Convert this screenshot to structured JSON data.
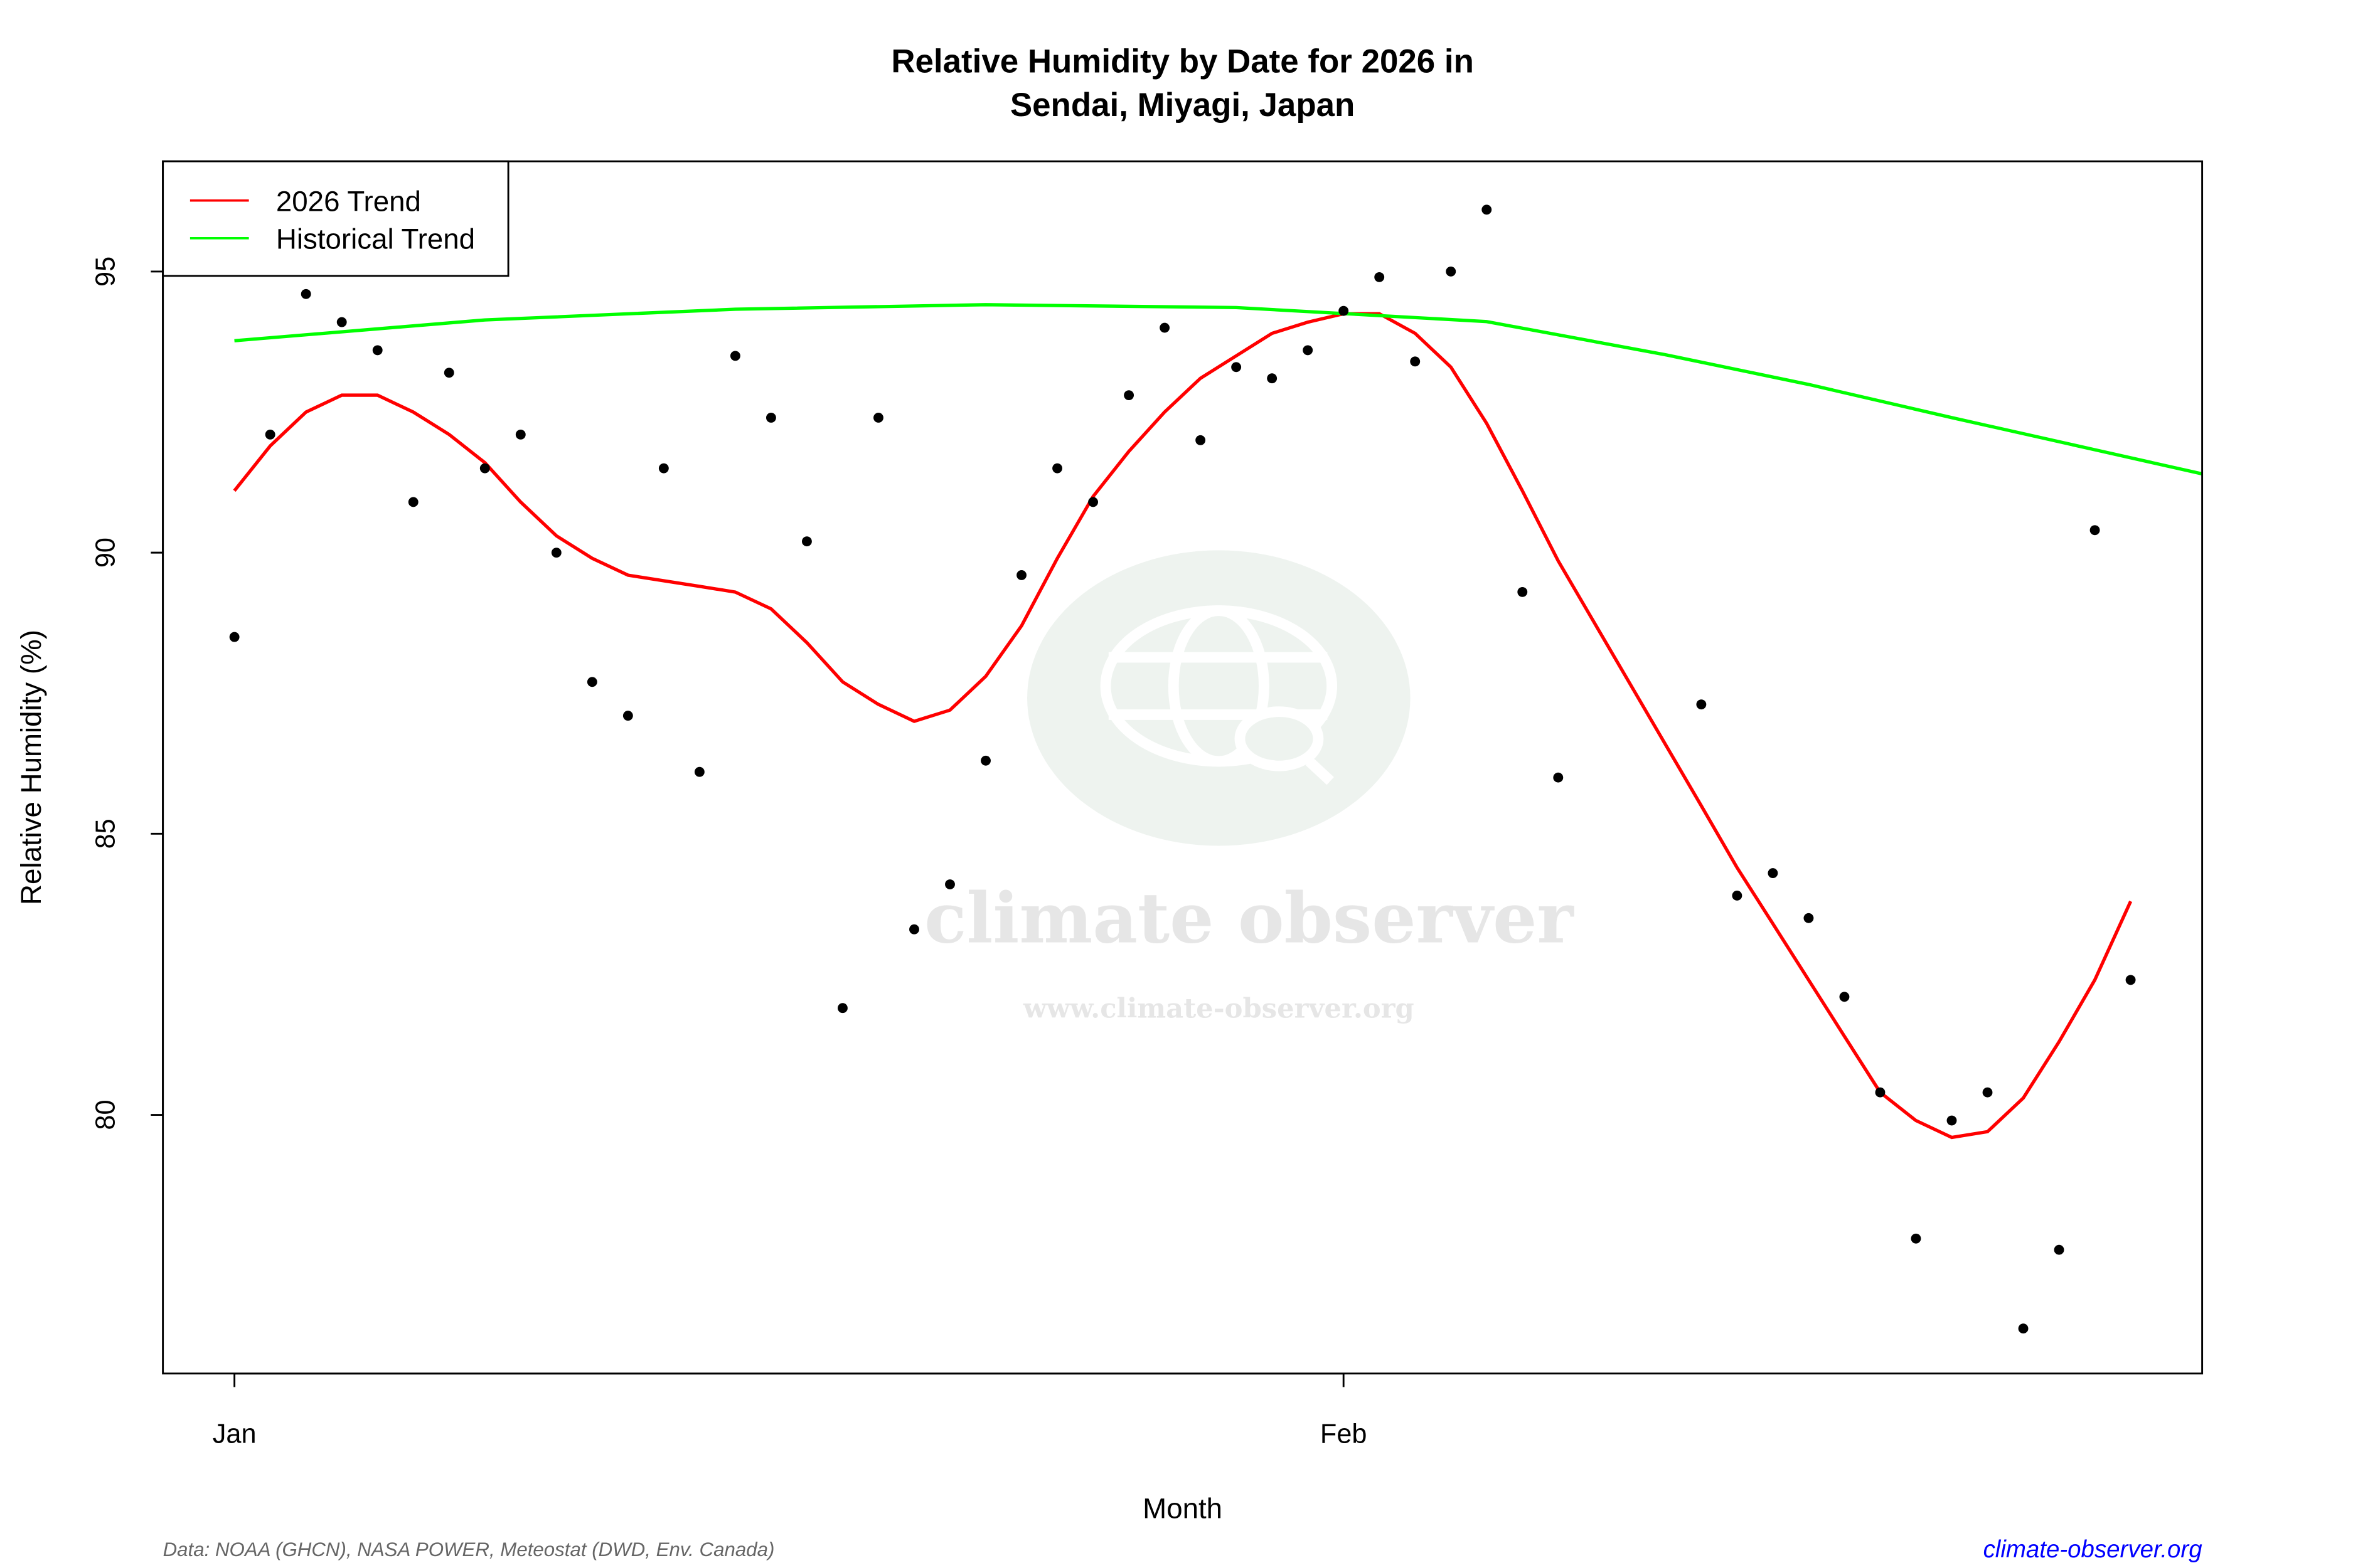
{
  "chart_data": {
    "type": "scatter",
    "title": "Relative Humidity by Date for 2026 in",
    "subtitle": "Sendai, Miyagi, Japan",
    "xlabel": "Month",
    "ylabel": "Relative Humidity (%)",
    "ylim": [
      75.4,
      96.96
    ],
    "xlim": [
      "2025-12-30",
      "2026-02-25"
    ],
    "y_ticks": [
      80,
      85,
      90,
      95
    ],
    "x_ticks": [
      {
        "date": "2026-01-01",
        "label": "Jan"
      },
      {
        "date": "2026-02-01",
        "label": "Feb"
      }
    ],
    "grid": false,
    "legend_position": "top-left",
    "legend": [
      {
        "label": "2026 Trend",
        "color": "#ff0000"
      },
      {
        "label": "Historical Trend",
        "color": "#00ff00"
      }
    ],
    "points": {
      "color": "#000000",
      "x": [
        "2026-01-01",
        "2026-01-02",
        "2026-01-03",
        "2026-01-04",
        "2026-01-05",
        "2026-01-06",
        "2026-01-07",
        "2026-01-08",
        "2026-01-09",
        "2026-01-10",
        "2026-01-11",
        "2026-01-12",
        "2026-01-13",
        "2026-01-14",
        "2026-01-15",
        "2026-01-16",
        "2026-01-17",
        "2026-01-18",
        "2026-01-19",
        "2026-01-20",
        "2026-01-21",
        "2026-01-22",
        "2026-01-23",
        "2026-01-24",
        "2026-01-25",
        "2026-01-26",
        "2026-01-27",
        "2026-01-28",
        "2026-01-29",
        "2026-01-30",
        "2026-01-31",
        "2026-02-01",
        "2026-02-02",
        "2026-02-03",
        "2026-02-04",
        "2026-02-05",
        "2026-02-06",
        "2026-02-07",
        "2026-02-11",
        "2026-02-12",
        "2026-02-13",
        "2026-02-14",
        "2026-02-15",
        "2026-02-16",
        "2026-02-17",
        "2026-02-18",
        "2026-02-19",
        "2026-02-20",
        "2026-02-21",
        "2026-02-22",
        "2026-02-23"
      ],
      "y": [
        88.5,
        92.1,
        94.6,
        94.1,
        93.6,
        90.9,
        93.2,
        91.5,
        92.1,
        90.0,
        87.7,
        87.1,
        91.5,
        86.1,
        93.5,
        92.4,
        90.2,
        81.9,
        92.4,
        83.3,
        84.1,
        86.3,
        89.6,
        91.5,
        90.9,
        92.8,
        94.0,
        92.0,
        93.3,
        93.1,
        93.6,
        94.3,
        94.9,
        93.4,
        95.0,
        96.1,
        89.3,
        86.0,
        87.3,
        83.9,
        84.3,
        83.5,
        82.1,
        80.4,
        77.8,
        79.9,
        80.4,
        76.2,
        77.6,
        90.4,
        82.4
      ]
    },
    "series": [
      {
        "name": "2026 Trend",
        "color": "#ff0000",
        "x": [
          "2026-01-01",
          "2026-01-02",
          "2026-01-03",
          "2026-01-04",
          "2026-01-05",
          "2026-01-06",
          "2026-01-07",
          "2026-01-08",
          "2026-01-09",
          "2026-01-10",
          "2026-01-11",
          "2026-01-12",
          "2026-01-13",
          "2026-01-14",
          "2026-01-15",
          "2026-01-16",
          "2026-01-17",
          "2026-01-18",
          "2026-01-19",
          "2026-01-20",
          "2026-01-21",
          "2026-01-22",
          "2026-01-23",
          "2026-01-24",
          "2026-01-25",
          "2026-01-26",
          "2026-01-27",
          "2026-01-28",
          "2026-01-29",
          "2026-01-30",
          "2026-01-31",
          "2026-02-01",
          "2026-02-02",
          "2026-02-03",
          "2026-02-04",
          "2026-02-05",
          "2026-02-06",
          "2026-02-07",
          "2026-02-11",
          "2026-02-12",
          "2026-02-13",
          "2026-02-14",
          "2026-02-15",
          "2026-02-16",
          "2026-02-17",
          "2026-02-18",
          "2026-02-19",
          "2026-02-20",
          "2026-02-21",
          "2026-02-22",
          "2026-02-23"
        ],
        "y": [
          91.1,
          91.9,
          92.5,
          92.8,
          92.8,
          92.5,
          92.1,
          91.6,
          90.9,
          90.3,
          89.9,
          89.6,
          89.5,
          89.4,
          89.3,
          89.0,
          88.4,
          87.7,
          87.3,
          87.0,
          87.2,
          87.8,
          88.7,
          89.9,
          91.0,
          91.8,
          92.5,
          93.1,
          93.5,
          93.9,
          94.1,
          94.25,
          94.25,
          93.9,
          93.3,
          92.3,
          91.1,
          89.85,
          85.5,
          84.4,
          83.4,
          82.4,
          81.4,
          80.4,
          79.9,
          79.6,
          79.7,
          80.3,
          81.3,
          82.4,
          83.8
        ]
      },
      {
        "name": "Historical Trend",
        "color": "#00ff00",
        "x": [
          "2026-01-01",
          "2026-01-08",
          "2026-01-15",
          "2026-01-22",
          "2026-01-29",
          "2026-02-05",
          "2026-02-10",
          "2026-02-14",
          "2026-02-18",
          "2026-02-22",
          "2026-02-25"
        ],
        "y": [
          93.77,
          94.14,
          94.33,
          94.41,
          94.36,
          94.11,
          93.52,
          92.99,
          92.4,
          91.83,
          91.4
        ]
      }
    ]
  },
  "footer": {
    "source": "Data: NOAA (GHCN), NASA POWER, Meteostat (DWD, Env. Canada)",
    "link": "climate-observer.org"
  },
  "watermark": {
    "name": "climate observer",
    "url": "www.climate-observer.org"
  }
}
